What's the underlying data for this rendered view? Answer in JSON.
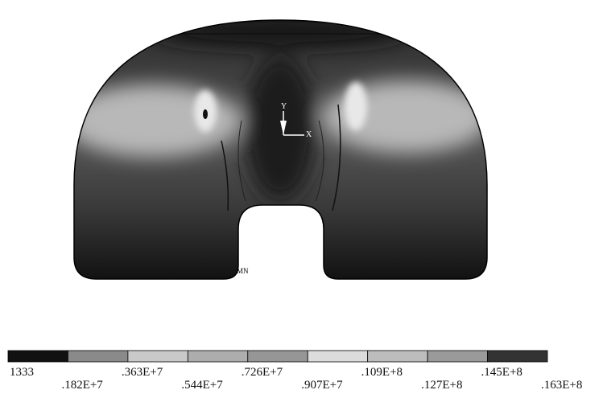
{
  "legend": {
    "labels": [
      "1333",
      ".182E+7",
      ".363E+7",
      ".544E+7",
      ".726E+7",
      ".907E+7",
      ".109E+8",
      ".127E+8",
      ".145E+8",
      ".163E+8"
    ],
    "colors": [
      "#111111",
      "#8a8a8a",
      "#c9c9c9",
      "#adadad",
      "#969696",
      "#dcdcdc",
      "#bdbdbd",
      "#9a9a9a",
      "#333333"
    ]
  },
  "annotations": {
    "y_axis": "Y",
    "x_axis": "X",
    "min_marker": "MN"
  }
}
